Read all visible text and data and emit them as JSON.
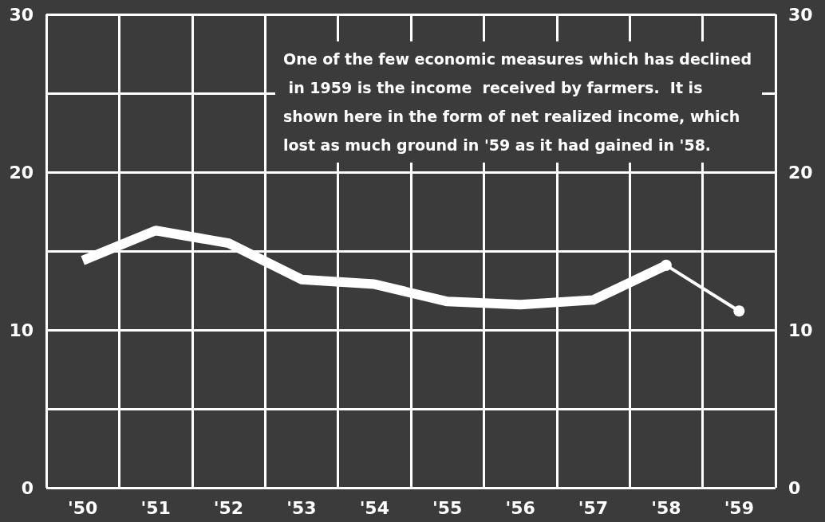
{
  "chart_data": {
    "type": "line",
    "categories": [
      "'50",
      "'51",
      "'52",
      "'53",
      "'54",
      "'55",
      "'56",
      "'57",
      "'58",
      "'59"
    ],
    "series": [
      {
        "color": "#ffffff",
        "marker": "none",
        "values": [
          14.4,
          16.3,
          15.5,
          13.2,
          12.9,
          11.8,
          11.6,
          11.9,
          14.1,
          null
        ]
      },
      {
        "color": "#ffffff",
        "marker": "circle",
        "values": [
          null,
          null,
          null,
          null,
          null,
          null,
          null,
          null,
          14.1,
          11.2
        ]
      }
    ],
    "ylim": [
      0,
      30
    ],
    "yticks": [
      0,
      {
        "value": 5,
        "label": null
      },
      10,
      {
        "value": 15,
        "label": null
      },
      20,
      {
        "value": 25,
        "label": null
      },
      30
    ],
    "y2lim": [
      0,
      30
    ],
    "y2ticks": [
      0,
      {
        "value": 5,
        "label": null
      },
      10,
      {
        "value": 15,
        "label": null
      },
      20,
      {
        "value": 25,
        "label": null
      },
      30
    ],
    "grid": true,
    "annotations": [
      "One of the few economic measures which has declined in 1959 is the income  received by farmers.  It is shown here in the form of net realized income, which lost as much ground in '59 as it had gained in '58."
    ]
  }
}
